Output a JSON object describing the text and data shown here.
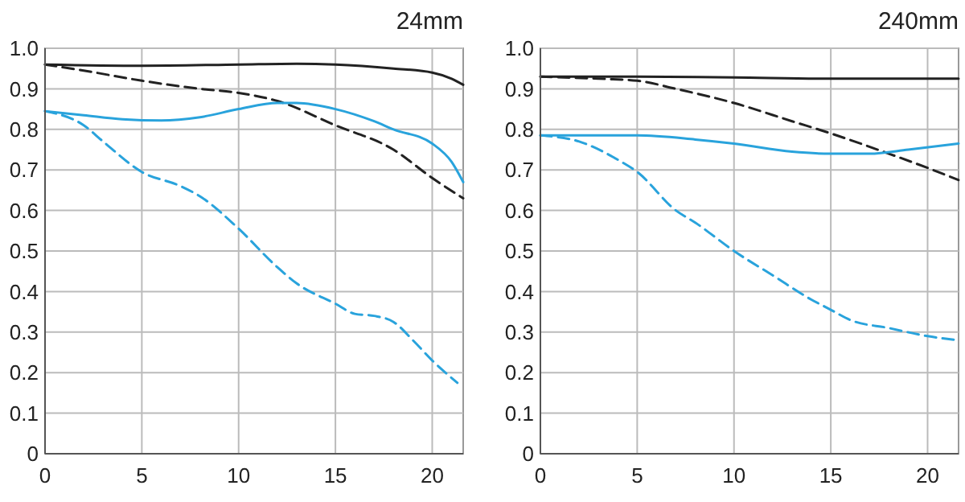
{
  "chart_data": [
    {
      "type": "line",
      "title": "24mm",
      "xlim": [
        0,
        21.6
      ],
      "ylim": [
        0,
        1
      ],
      "xticks": [
        0,
        5,
        10,
        15,
        20
      ],
      "yticks": [
        0,
        0.1,
        0.2,
        0.3,
        0.4,
        0.5,
        0.6,
        0.7,
        0.8,
        0.9,
        {
          "value": 1,
          "label": "1.0"
        }
      ],
      "grid": true,
      "series": [
        {
          "color": "#222222",
          "line_style": "solid",
          "x": [
            0,
            5,
            10,
            13,
            15,
            18,
            20,
            21,
            21.6
          ],
          "values": [
            0.96,
            0.957,
            0.96,
            0.962,
            0.96,
            0.95,
            0.94,
            0.925,
            0.91
          ]
        },
        {
          "color": "#222222",
          "line_style": "dashed",
          "x": [
            0,
            2,
            5,
            8,
            10,
            12,
            15,
            18,
            20,
            21.6
          ],
          "values": [
            0.96,
            0.945,
            0.92,
            0.9,
            0.89,
            0.87,
            0.81,
            0.75,
            0.68,
            0.63
          ]
        },
        {
          "color": "#29a3dc",
          "line_style": "solid",
          "x": [
            0,
            2,
            4,
            6,
            8,
            10,
            12,
            13,
            15,
            17,
            18,
            20,
            21,
            21.6
          ],
          "values": [
            0.845,
            0.835,
            0.825,
            0.822,
            0.83,
            0.85,
            0.865,
            0.865,
            0.85,
            0.82,
            0.8,
            0.765,
            0.72,
            0.67
          ]
        },
        {
          "color": "#29a3dc",
          "line_style": "dashed",
          "x": [
            0,
            2,
            3,
            5,
            7,
            8,
            10,
            12,
            13,
            15,
            16,
            17,
            18,
            19,
            20,
            21.3
          ],
          "values": [
            0.845,
            0.81,
            0.77,
            0.695,
            0.66,
            0.635,
            0.555,
            0.46,
            0.42,
            0.37,
            0.345,
            0.34,
            0.325,
            0.28,
            0.23,
            0.175
          ]
        }
      ]
    },
    {
      "type": "line",
      "title": "240mm",
      "xlim": [
        0,
        21.6
      ],
      "ylim": [
        0,
        1
      ],
      "xticks": [
        0,
        5,
        10,
        15,
        20
      ],
      "yticks": [
        0,
        0.1,
        0.2,
        0.3,
        0.4,
        0.5,
        0.6,
        0.7,
        0.8,
        0.9,
        {
          "value": 1,
          "label": "1.0"
        }
      ],
      "grid": true,
      "series": [
        {
          "color": "#222222",
          "line_style": "solid",
          "x": [
            0,
            5,
            10,
            15,
            21.6
          ],
          "values": [
            0.93,
            0.93,
            0.928,
            0.925,
            0.925
          ]
        },
        {
          "color": "#222222",
          "line_style": "dashed",
          "x": [
            0,
            3,
            5,
            7,
            10,
            13,
            15,
            18,
            20,
            21.6
          ],
          "values": [
            0.93,
            0.925,
            0.92,
            0.9,
            0.865,
            0.82,
            0.79,
            0.74,
            0.705,
            0.675
          ]
        },
        {
          "color": "#29a3dc",
          "line_style": "solid",
          "x": [
            0,
            3,
            5,
            8,
            10,
            13,
            15,
            17,
            19,
            21.6
          ],
          "values": [
            0.785,
            0.785,
            0.785,
            0.775,
            0.765,
            0.745,
            0.74,
            0.74,
            0.75,
            0.765
          ]
        },
        {
          "color": "#29a3dc",
          "line_style": "dashed",
          "x": [
            0,
            2,
            4,
            5,
            7,
            8,
            10,
            12,
            14,
            15,
            16,
            18,
            20,
            21.6
          ],
          "values": [
            0.785,
            0.77,
            0.725,
            0.695,
            0.6,
            0.57,
            0.5,
            0.44,
            0.38,
            0.355,
            0.33,
            0.31,
            0.29,
            0.28
          ]
        }
      ]
    }
  ]
}
